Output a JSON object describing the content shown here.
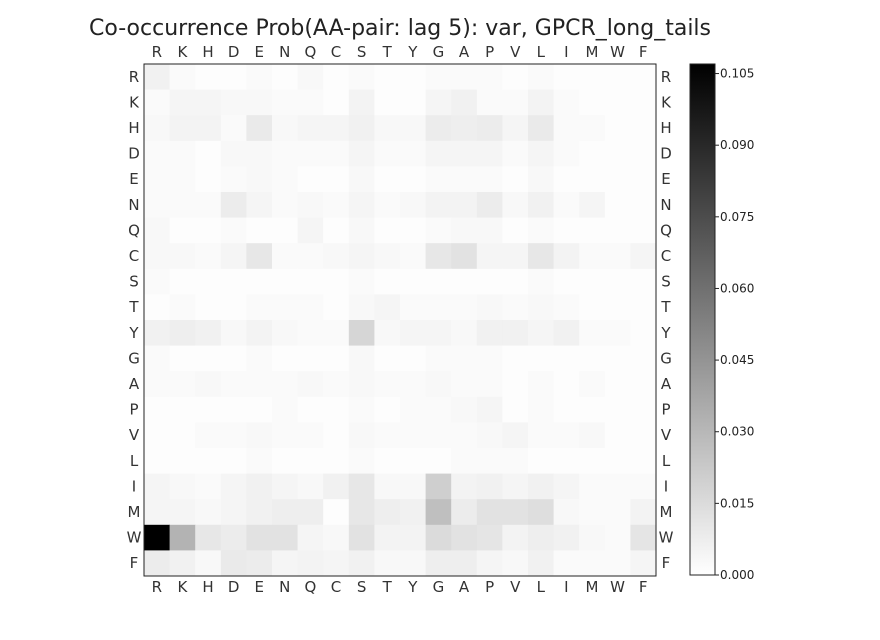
{
  "chart_data": {
    "type": "heatmap",
    "title": "Co-occurrence Prob(AA-pair: lag 5): var, GPCR_long_tails",
    "x_categories": [
      "R",
      "K",
      "H",
      "D",
      "E",
      "N",
      "Q",
      "C",
      "S",
      "T",
      "Y",
      "G",
      "A",
      "P",
      "V",
      "L",
      "I",
      "M",
      "W",
      "F"
    ],
    "y_categories": [
      "R",
      "K",
      "H",
      "D",
      "E",
      "N",
      "Q",
      "C",
      "S",
      "T",
      "Y",
      "G",
      "A",
      "P",
      "V",
      "L",
      "I",
      "M",
      "W",
      "F"
    ],
    "colorbar": {
      "min": 0.0,
      "max": 0.107,
      "ticks": [
        "0.000",
        "0.015",
        "0.030",
        "0.045",
        "0.060",
        "0.075",
        "0.090",
        "0.105"
      ]
    },
    "colormap": {
      "low": "#ffffff",
      "high": "#000000"
    },
    "values": [
      [
        0.006,
        0.002,
        0.001,
        0.001,
        0.002,
        0.001,
        0.003,
        0.001,
        0.002,
        0.001,
        0.001,
        0.002,
        0.002,
        0.002,
        0.001,
        0.002,
        0.001,
        0.001,
        0.001,
        0.001
      ],
      [
        0.002,
        0.004,
        0.004,
        0.003,
        0.003,
        0.002,
        0.002,
        0.001,
        0.005,
        0.001,
        0.001,
        0.004,
        0.006,
        0.002,
        0.002,
        0.005,
        0.002,
        0.001,
        0.001,
        0.001
      ],
      [
        0.003,
        0.005,
        0.005,
        0.002,
        0.009,
        0.003,
        0.004,
        0.004,
        0.006,
        0.003,
        0.003,
        0.008,
        0.007,
        0.008,
        0.004,
        0.009,
        0.002,
        0.002,
        0.001,
        0.001
      ],
      [
        0.002,
        0.002,
        0.001,
        0.003,
        0.003,
        0.002,
        0.002,
        0.002,
        0.004,
        0.002,
        0.002,
        0.004,
        0.004,
        0.004,
        0.002,
        0.004,
        0.002,
        0.001,
        0.001,
        0.001
      ],
      [
        0.002,
        0.002,
        0.001,
        0.002,
        0.003,
        0.002,
        0.001,
        0.001,
        0.003,
        0.001,
        0.001,
        0.002,
        0.002,
        0.002,
        0.001,
        0.003,
        0.001,
        0.001,
        0.001,
        0.001
      ],
      [
        0.002,
        0.002,
        0.002,
        0.008,
        0.004,
        0.002,
        0.003,
        0.002,
        0.004,
        0.002,
        0.003,
        0.005,
        0.005,
        0.008,
        0.003,
        0.006,
        0.002,
        0.004,
        0.001,
        0.001
      ],
      [
        0.003,
        0.001,
        0.001,
        0.002,
        0.001,
        0.001,
        0.004,
        0.001,
        0.003,
        0.001,
        0.001,
        0.002,
        0.003,
        0.003,
        0.001,
        0.002,
        0.001,
        0.001,
        0.001,
        0.001
      ],
      [
        0.003,
        0.003,
        0.002,
        0.004,
        0.01,
        0.002,
        0.002,
        0.003,
        0.004,
        0.003,
        0.002,
        0.01,
        0.012,
        0.004,
        0.004,
        0.01,
        0.005,
        0.002,
        0.002,
        0.004
      ],
      [
        0.002,
        0.001,
        0.001,
        0.001,
        0.001,
        0.001,
        0.001,
        0.001,
        0.002,
        0.001,
        0.001,
        0.001,
        0.001,
        0.001,
        0.001,
        0.002,
        0.001,
        0.001,
        0.001,
        0.001
      ],
      [
        0.001,
        0.002,
        0.001,
        0.001,
        0.002,
        0.002,
        0.002,
        0.001,
        0.003,
        0.004,
        0.002,
        0.002,
        0.002,
        0.003,
        0.002,
        0.003,
        0.002,
        0.001,
        0.001,
        0.001
      ],
      [
        0.006,
        0.007,
        0.006,
        0.003,
        0.005,
        0.003,
        0.002,
        0.002,
        0.017,
        0.003,
        0.004,
        0.004,
        0.003,
        0.006,
        0.006,
        0.004,
        0.006,
        0.002,
        0.002,
        0.001
      ],
      [
        0.002,
        0.001,
        0.001,
        0.001,
        0.002,
        0.001,
        0.001,
        0.001,
        0.003,
        0.001,
        0.001,
        0.002,
        0.002,
        0.002,
        0.001,
        0.001,
        0.001,
        0.001,
        0.001,
        0.001
      ],
      [
        0.002,
        0.002,
        0.003,
        0.002,
        0.002,
        0.002,
        0.003,
        0.002,
        0.003,
        0.002,
        0.002,
        0.003,
        0.002,
        0.002,
        0.001,
        0.002,
        0.001,
        0.002,
        0.001,
        0.001
      ],
      [
        0.001,
        0.001,
        0.001,
        0.001,
        0.001,
        0.002,
        0.001,
        0.001,
        0.002,
        0.001,
        0.002,
        0.002,
        0.003,
        0.004,
        0.001,
        0.002,
        0.001,
        0.001,
        0.001,
        0.001
      ],
      [
        0.001,
        0.001,
        0.002,
        0.002,
        0.003,
        0.002,
        0.002,
        0.001,
        0.003,
        0.002,
        0.002,
        0.002,
        0.002,
        0.003,
        0.004,
        0.002,
        0.002,
        0.003,
        0.001,
        0.001
      ],
      [
        0.001,
        0.001,
        0.001,
        0.001,
        0.002,
        0.001,
        0.001,
        0.001,
        0.002,
        0.001,
        0.001,
        0.001,
        0.002,
        0.002,
        0.002,
        0.001,
        0.001,
        0.001,
        0.001,
        0.001
      ],
      [
        0.004,
        0.003,
        0.002,
        0.004,
        0.006,
        0.004,
        0.003,
        0.006,
        0.01,
        0.003,
        0.003,
        0.02,
        0.005,
        0.006,
        0.004,
        0.006,
        0.004,
        0.002,
        0.002,
        0.002
      ],
      [
        0.004,
        0.004,
        0.003,
        0.004,
        0.006,
        0.007,
        0.007,
        0.001,
        0.01,
        0.007,
        0.006,
        0.027,
        0.008,
        0.012,
        0.012,
        0.014,
        0.003,
        0.002,
        0.002,
        0.005
      ],
      [
        0.107,
        0.032,
        0.01,
        0.008,
        0.012,
        0.012,
        0.004,
        0.003,
        0.012,
        0.005,
        0.005,
        0.015,
        0.012,
        0.011,
        0.005,
        0.007,
        0.006,
        0.003,
        0.002,
        0.011
      ],
      [
        0.008,
        0.006,
        0.003,
        0.009,
        0.008,
        0.004,
        0.005,
        0.004,
        0.006,
        0.003,
        0.003,
        0.007,
        0.007,
        0.004,
        0.003,
        0.006,
        0.002,
        0.002,
        0.002,
        0.004
      ]
    ]
  }
}
